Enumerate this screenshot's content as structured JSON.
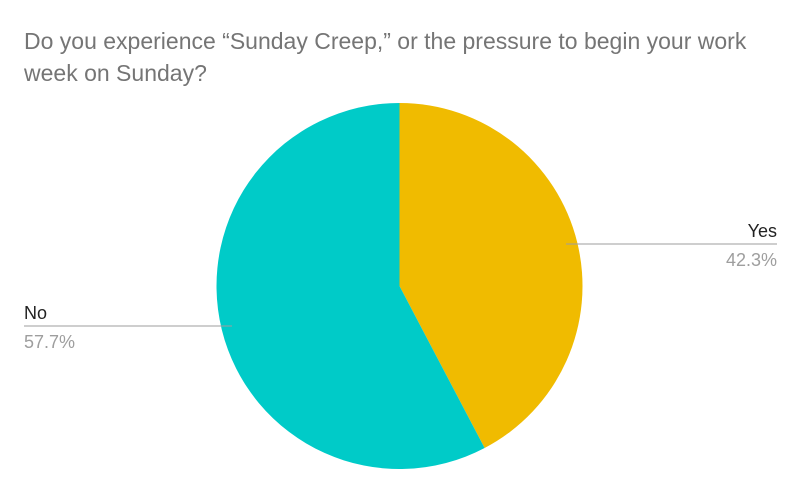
{
  "chart_data": {
    "type": "pie",
    "title": "Do you experience “Sunday Creep,” or the pressure to begin your work week on Sunday?",
    "slices": [
      {
        "label": "Yes",
        "value": 42.3,
        "value_label": "42.3%",
        "color": "#F0BB00"
      },
      {
        "label": "No",
        "value": 57.7,
        "value_label": "57.7%",
        "color": "#00CBC8"
      }
    ],
    "start_angle_deg": 0,
    "direction": "clockwise",
    "legend": "none",
    "labels": "outside with leader lines"
  }
}
